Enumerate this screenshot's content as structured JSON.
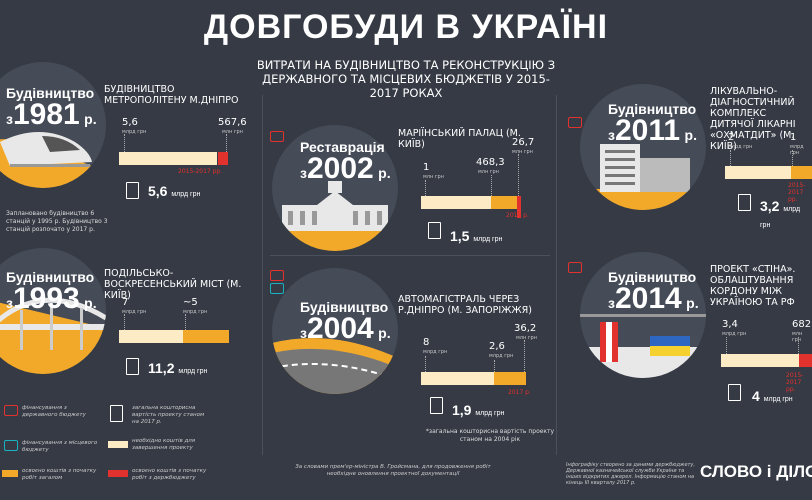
{
  "header": {
    "title": "ДОВГОБУДИ В УКРАЇНІ",
    "subtitle": "ВИТРАТИ НА БУДІВНИЦТВО ТА РЕКОНСТРУКЦІЮ З ДЕРЖАВНОГО ТА МІСЦЕВИХ БЮДЖЕТІВ У 2015-2017 РОКАХ"
  },
  "units": {
    "mln": "млн грн",
    "mlrd": "млрд грн"
  },
  "projects": [
    {
      "tag_word": "Будівництво",
      "tag_prefix": "з",
      "tag_year": "1981",
      "tag_suffix": "р.",
      "name": "БУДІВНИЦТВО МЕТРОПОЛІТЕНУ М.ДНІПРО",
      "v1": "5,6",
      "v1_unit": "млрд грн",
      "v2": "567,6",
      "v2_unit": "млн грн",
      "period": "2015-2017 рр.",
      "total": "5,6",
      "total_unit": "млрд грн",
      "note": "Заплановано будівництво 6 станцій у 1995 р. Будівництво 3 станцій розпочато у 2017 р."
    },
    {
      "tag_word": "Будівництво",
      "tag_prefix": "з",
      "tag_year": "1993",
      "tag_suffix": "р.",
      "name": "ПОДІЛЬСЬКО-ВОСКРЕСЕНСЬКИЙ МІСТ (М. КИЇВ)",
      "v1": "7",
      "v1_unit": "млрд грн",
      "v2": "~5",
      "v2_unit": "млрд грн",
      "total": "11,2",
      "total_unit": "млрд грн"
    },
    {
      "tag_word": "Реставрація",
      "tag_prefix": "з",
      "tag_year": "2002",
      "tag_suffix": "р.",
      "name": "МАРІЇНСЬКИЙ ПАЛАЦ (М. КИЇВ)",
      "v1": "1",
      "v1_unit": "млн грн",
      "v2": "468,3",
      "v2_unit": "млн грн",
      "v3": "26,7",
      "v3_unit": "млн грн",
      "period": "2016 р.",
      "total": "1,5",
      "total_unit": "млрд грн"
    },
    {
      "tag_word": "Будівництво",
      "tag_prefix": "з",
      "tag_year": "2004",
      "tag_suffix": "р.",
      "name": "АВТОМАГІСТРАЛЬ ЧЕРЕЗ Р.ДНІПРО (М. ЗАПОРІЖЖЯ)",
      "v1": "8",
      "v1_unit": "млрд грн",
      "v2": "2,6",
      "v2_unit": "млрд грн",
      "v3": "36,2",
      "v3_unit": "млн грн",
      "period": "2017 р.",
      "total": "1,9",
      "total_unit": "млрд грн",
      "note": "*загальна кошторисна вартість проекту станом на 2004 рік"
    },
    {
      "tag_word": "Будівництво",
      "tag_prefix": "з",
      "tag_year": "2011",
      "tag_suffix": "р.",
      "name": "ЛІКУВАЛЬНО-ДІАГНОСТИЧНИЙ КОМПЛЕКС ДИТЯЧОЇ ЛІКАРНІ «ОХМАТДИТ» (М. КИЇВ)",
      "v1": "2",
      "v1_unit": "млрд грн",
      "v2": "1",
      "v2_unit": "млрд грн",
      "period": "2015-2017 рр.",
      "total": "3,2",
      "total_unit": "млрд грн"
    },
    {
      "tag_word": "Будівництво",
      "tag_prefix": "з",
      "tag_year": "2014",
      "tag_suffix": "р.",
      "name": "ПРОЕКТ «СТІНА». ОБЛАШТУВАННЯ КОРДОНУ МІЖ УКРАЇНОЮ ТА РФ",
      "v1": "3,4",
      "v1_unit": "млрд грн",
      "v2": "682",
      "v2_unit": "млн грн",
      "period": "2015-2017 рр.",
      "total": "4",
      "total_unit": "млрд грн"
    }
  ],
  "legend": {
    "state": "фінансування з державного бюджету",
    "local": "фінансування з місцевого бюджету",
    "spent_start": "освоєно коштів з початку робіт загалом",
    "estimate": "загальна кошторисна вартість проекту станом на 2017 р.",
    "needed": "необхідно коштів для завершення проекту",
    "spent_period": "освоєно коштів з початку робіт з держбюджету"
  },
  "footer": {
    "quote": "За словами прем'єр-міністра В. Гройсмана, для продовження робіт необхідне оновлення проектної документації",
    "source": "Інфографіку створено за даними держбюджету, Державної казначейської служби України та інших відкритих джерел. Інформацію станом на кінець III кварталу 2017 р.",
    "brand": "СЛОВО і ДІЛО"
  },
  "colors": {
    "background": "#353a44",
    "cream": "#fcebc4",
    "orange": "#f2a929",
    "red": "#e2322d",
    "teal": "#1bb0c0",
    "circle": "#454b57"
  }
}
